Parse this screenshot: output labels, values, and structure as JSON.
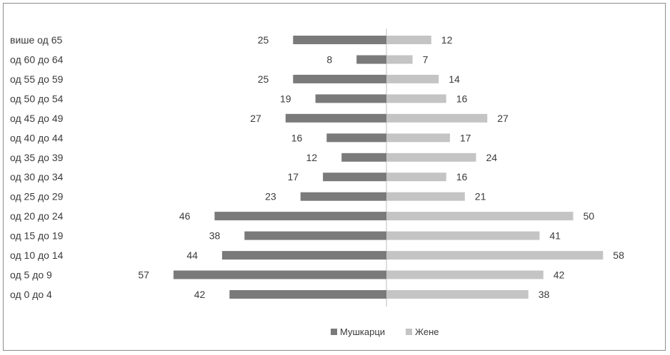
{
  "colors": {
    "male": "#7a7a7a",
    "female": "#c4c4c4",
    "axis": "#bdbdbd",
    "text": "#3a3a3a"
  },
  "chart_data": {
    "type": "bar",
    "orientation": "horizontal",
    "layout": "population-pyramid",
    "categories": [
      "од 0 до 4",
      "од 5 до 9",
      "од 10 до 14",
      "од 15 до 19",
      "од 20 до 24",
      "од 25 до 29",
      "од 30 до 34",
      "од 35 до 39",
      "од 40 до 44",
      "од 45 до 49",
      "од 50 до 54",
      "од 55 до 59",
      "од 60 до 64",
      "више од 65"
    ],
    "series": [
      {
        "name": "Мушкарци",
        "side": "left",
        "values": [
          42,
          57,
          44,
          38,
          46,
          23,
          17,
          12,
          16,
          27,
          19,
          25,
          8,
          25
        ]
      },
      {
        "name": "Жене",
        "side": "right",
        "values": [
          38,
          42,
          58,
          41,
          50,
          21,
          16,
          24,
          17,
          27,
          16,
          14,
          7,
          12
        ]
      }
    ],
    "xlim": [
      -60,
      60
    ],
    "grid": false,
    "legend_position": "bottom"
  }
}
